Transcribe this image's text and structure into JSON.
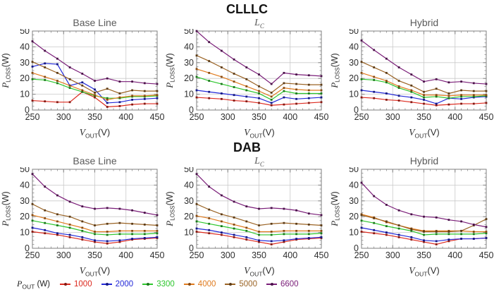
{
  "groups": [
    {
      "label": "CLLLC"
    },
    {
      "label": "DAB"
    }
  ],
  "axes": {
    "xlabel_base": "V",
    "xlabel_sub": "OUT",
    "xlabel_unit": "(V)",
    "ylabel_base": "P",
    "ylabel_sub": "LOSS",
    "ylabel_unit": "(W)",
    "xticks": [
      250,
      300,
      350,
      400,
      450
    ],
    "yticks": [
      0,
      10,
      20,
      30,
      40,
      50
    ]
  },
  "legend": {
    "title_base": "P",
    "title_sub": "OUT",
    "title_unit": " (W)",
    "entries": [
      {
        "label": "1000",
        "color": "#dc291e"
      },
      {
        "label": "2000",
        "color": "#2228d8"
      },
      {
        "label": "3300",
        "color": "#2dc62d"
      },
      {
        "label": "4000",
        "color": "#e07b1e"
      },
      {
        "label": "5000",
        "color": "#9a6324"
      },
      {
        "label": "6600",
        "color": "#7a1d78"
      }
    ]
  },
  "style": {
    "grid_color": "#c9c9c9",
    "frame_color": "#7f7f7f",
    "tick_text_color": "#2e2e2e"
  },
  "chart_data": [
    {
      "type": "line",
      "group": "CLLLC",
      "title_base": "Base Line",
      "title_sub": "",
      "xlim": [
        250,
        450
      ],
      "ylim": [
        0,
        50
      ],
      "grid": true,
      "x": [
        250,
        270,
        290,
        310,
        330,
        350,
        370,
        390,
        410,
        430,
        450
      ],
      "series": [
        {
          "name": "1000",
          "values": [
            6,
            5.5,
            5,
            5,
            11.5,
            8,
            2,
            2.5,
            3.5,
            4,
            4
          ]
        },
        {
          "name": "2000",
          "values": [
            27.5,
            29.5,
            29,
            15.5,
            17.5,
            13,
            4.5,
            5,
            6.5,
            7,
            7.5
          ]
        },
        {
          "name": "3300",
          "values": [
            19.5,
            19,
            17,
            14,
            11.5,
            9,
            7.5,
            7.5,
            8.5,
            8.5,
            9
          ]
        },
        {
          "name": "4000",
          "values": [
            23.5,
            21,
            18.5,
            15.5,
            12.5,
            9.5,
            6.5,
            8,
            9,
            9,
            9.5
          ]
        },
        {
          "name": "5000",
          "values": [
            30.5,
            27,
            23.5,
            19.5,
            15.5,
            11,
            13.5,
            10.5,
            12.5,
            12,
            12
          ]
        },
        {
          "name": "6600",
          "values": [
            43.5,
            37.5,
            32.5,
            27,
            23,
            18.5,
            20,
            18,
            18,
            17,
            16.5
          ]
        }
      ]
    },
    {
      "type": "line",
      "group": "CLLLC",
      "title_base": "L",
      "title_sub": "C",
      "xlim": [
        250,
        450
      ],
      "ylim": [
        0,
        50
      ],
      "grid": true,
      "x": [
        250,
        270,
        290,
        310,
        330,
        350,
        370,
        390,
        410,
        430,
        450
      ],
      "series": [
        {
          "name": "1000",
          "values": [
            8,
            7.5,
            7,
            6,
            5.5,
            4.5,
            3,
            3.5,
            4,
            4.5,
            5
          ]
        },
        {
          "name": "2000",
          "values": [
            12.5,
            11.5,
            10.5,
            9.5,
            8.5,
            7.5,
            4.5,
            8,
            7,
            7.5,
            8
          ]
        },
        {
          "name": "3300",
          "values": [
            21,
            18.5,
            16.5,
            14.5,
            12.5,
            10.5,
            6.5,
            12,
            10.5,
            10.5,
            10.5
          ]
        },
        {
          "name": "4000",
          "values": [
            26,
            23.5,
            21,
            18,
            15,
            12,
            8.5,
            14,
            13,
            12.5,
            12.5
          ]
        },
        {
          "name": "5000",
          "values": [
            34.5,
            31,
            27,
            23,
            19.5,
            15,
            11,
            17,
            16.5,
            16,
            16
          ]
        },
        {
          "name": "6600",
          "values": [
            50,
            43,
            37.5,
            32,
            27,
            22.5,
            16.5,
            23.5,
            22.5,
            22,
            21.5
          ]
        }
      ]
    },
    {
      "type": "line",
      "group": "CLLLC",
      "title_base": "Hybrid",
      "title_sub": "",
      "xlim": [
        250,
        450
      ],
      "ylim": [
        0,
        50
      ],
      "grid": true,
      "x": [
        250,
        270,
        290,
        310,
        330,
        350,
        370,
        390,
        410,
        430,
        450
      ],
      "series": [
        {
          "name": "1000",
          "values": [
            8,
            7.5,
            6.5,
            6,
            5,
            4,
            3,
            3.5,
            4,
            4,
            4.5
          ]
        },
        {
          "name": "2000",
          "values": [
            12.5,
            11.5,
            10.5,
            9,
            8,
            6.5,
            4,
            7.5,
            7,
            8,
            8.5
          ]
        },
        {
          "name": "3300",
          "values": [
            19.5,
            19,
            17.5,
            14,
            11.5,
            8,
            8.5,
            7.5,
            8.5,
            8.5,
            9
          ]
        },
        {
          "name": "4000",
          "values": [
            23.5,
            21,
            18.5,
            15,
            12.5,
            9.5,
            9.5,
            9,
            9.5,
            9.5,
            9.5
          ]
        },
        {
          "name": "5000",
          "values": [
            30.5,
            27,
            23.5,
            18.5,
            15.5,
            11.5,
            13.5,
            10.5,
            12.5,
            12,
            12
          ]
        },
        {
          "name": "6600",
          "values": [
            44,
            38,
            32.5,
            27,
            22.5,
            18,
            19.5,
            17.5,
            18,
            17,
            16.5
          ]
        }
      ]
    },
    {
      "type": "line",
      "group": "DAB",
      "title_base": "Base Line",
      "title_sub": "",
      "xlim": [
        250,
        450
      ],
      "ylim": [
        0,
        50
      ],
      "grid": true,
      "x": [
        250,
        270,
        290,
        310,
        330,
        350,
        370,
        390,
        410,
        430,
        450
      ],
      "series": [
        {
          "name": "1000",
          "values": [
            10.5,
            9.5,
            8.5,
            7,
            5.5,
            4,
            3,
            4,
            5.5,
            6,
            6.5
          ]
        },
        {
          "name": "2000",
          "values": [
            13,
            11.5,
            9.5,
            8.5,
            7,
            5,
            4.5,
            5,
            6,
            6.5,
            7
          ]
        },
        {
          "name": "3300",
          "values": [
            17.5,
            16,
            14.5,
            13,
            11,
            9,
            8.5,
            9,
            9,
            9,
            9.5
          ]
        },
        {
          "name": "4000",
          "values": [
            21,
            19,
            17,
            15,
            13,
            10.5,
            10.5,
            11,
            11,
            11,
            11
          ]
        },
        {
          "name": "5000",
          "values": [
            28,
            24,
            21.5,
            20,
            17,
            14.5,
            15.5,
            16,
            15.5,
            15,
            14.5
          ]
        },
        {
          "name": "6600",
          "values": [
            47,
            39,
            33.5,
            29.5,
            26.5,
            25,
            25.5,
            25,
            24,
            22.5,
            21
          ]
        }
      ]
    },
    {
      "type": "line",
      "group": "DAB",
      "title_base": "L",
      "title_sub": "C",
      "xlim": [
        250,
        450
      ],
      "ylim": [
        0,
        50
      ],
      "grid": true,
      "x": [
        250,
        270,
        290,
        310,
        330,
        350,
        370,
        390,
        410,
        430,
        450
      ],
      "series": [
        {
          "name": "1000",
          "values": [
            10.5,
            9.5,
            8.5,
            7,
            5.5,
            4,
            2.5,
            4,
            5.5,
            6,
            6.5
          ]
        },
        {
          "name": "2000",
          "values": [
            12.5,
            11.5,
            10,
            8.5,
            7,
            5,
            4.5,
            5,
            6,
            6.5,
            7
          ]
        },
        {
          "name": "3300",
          "values": [
            17,
            15.5,
            14,
            12.5,
            11,
            8.5,
            8.5,
            9,
            9,
            9,
            9.5
          ]
        },
        {
          "name": "4000",
          "values": [
            20.5,
            19,
            17,
            15,
            13,
            10.5,
            10.5,
            11,
            11,
            11,
            11
          ]
        },
        {
          "name": "5000",
          "values": [
            28,
            24.5,
            21.5,
            19.5,
            17,
            14.5,
            15.5,
            16,
            15.5,
            15,
            14.5
          ]
        },
        {
          "name": "6600",
          "values": [
            47,
            39,
            33.5,
            29.5,
            26.5,
            25,
            25.5,
            25,
            24,
            22,
            21
          ]
        }
      ]
    },
    {
      "type": "line",
      "group": "DAB",
      "title_base": "Hybrid",
      "title_sub": "",
      "xlim": [
        250,
        450
      ],
      "ylim": [
        0,
        50
      ],
      "grid": true,
      "x": [
        250,
        270,
        290,
        310,
        330,
        350,
        370,
        390,
        410,
        430,
        450
      ],
      "series": [
        {
          "name": "1000",
          "values": [
            10.5,
            9.5,
            8.5,
            7,
            5.5,
            4,
            2.5,
            4.5,
            6,
            6,
            6.5
          ]
        },
        {
          "name": "2000",
          "values": [
            13,
            11.5,
            10,
            8.5,
            7,
            5,
            4.5,
            5.5,
            6,
            6,
            6.5
          ]
        },
        {
          "name": "3300",
          "values": [
            17.5,
            16,
            14,
            12.5,
            11,
            8.5,
            9,
            9,
            9,
            9,
            9.5
          ]
        },
        {
          "name": "4000",
          "values": [
            21.5,
            19.5,
            16.5,
            14.5,
            12.5,
            11,
            11,
            11,
            11,
            10.5,
            10.5
          ]
        },
        {
          "name": "5000",
          "values": [
            21,
            19,
            17,
            14.5,
            12,
            10.5,
            10.5,
            10.5,
            11,
            14.5,
            18.5
          ]
        },
        {
          "name": "6600",
          "values": [
            41.5,
            33,
            27.5,
            24,
            21.5,
            20,
            19.5,
            18,
            17,
            15,
            13.5
          ]
        }
      ]
    }
  ]
}
